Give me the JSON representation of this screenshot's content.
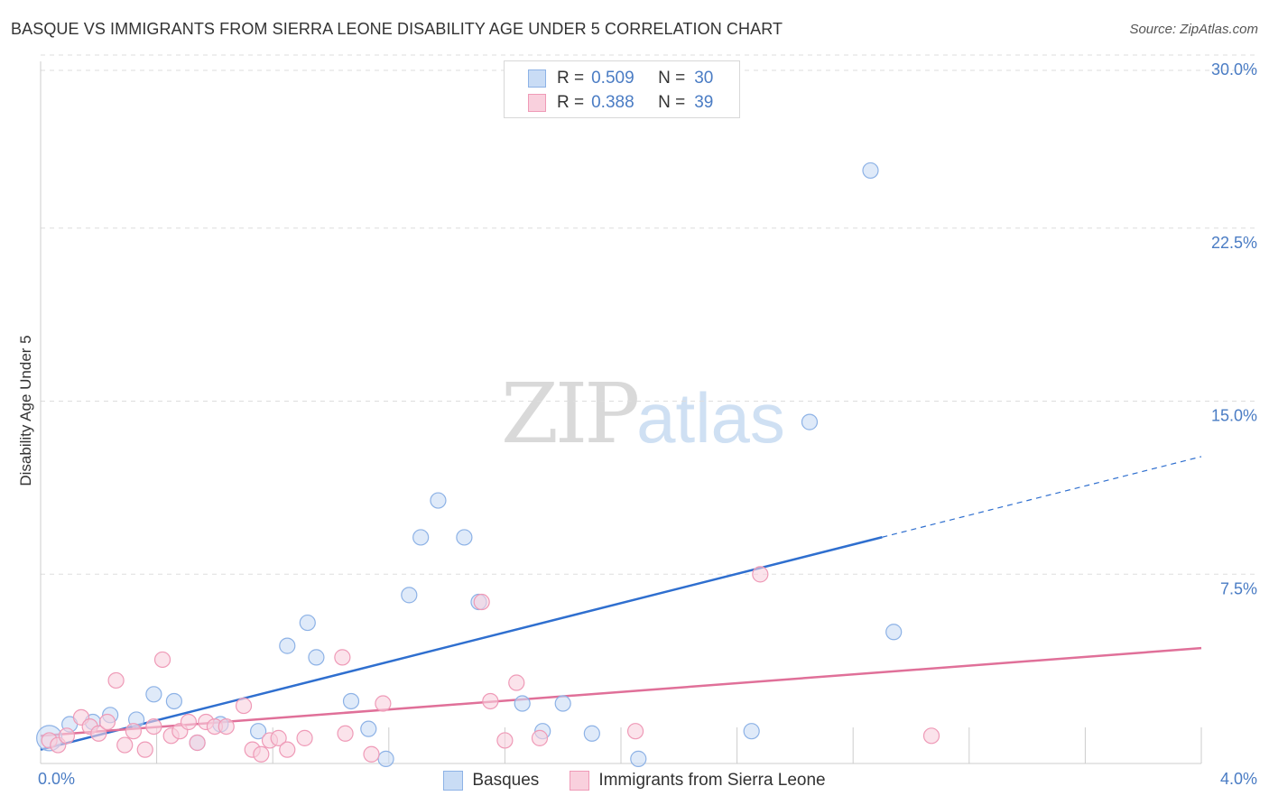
{
  "title": "BASQUE VS IMMIGRANTS FROM SIERRA LEONE DISABILITY AGE UNDER 5 CORRELATION CHART",
  "source": "Source: ZipAtlas.com",
  "watermark": {
    "zip": "ZIP",
    "atlas": "atlas"
  },
  "colors": {
    "blue": "#4a7cc4",
    "blue_line": "#2f6fcf",
    "blue_fill": "#c9dcf5",
    "blue_edge": "#8db2e6",
    "pink_line": "#e07099",
    "pink_fill": "#f9d0dd",
    "pink_edge": "#ef9ab7",
    "grid": "#dddddd"
  },
  "legend": {
    "rows": [
      {
        "r_label": "R =",
        "r_value": "0.509",
        "n_label": "N =",
        "n_value": "30"
      },
      {
        "r_label": "R =",
        "r_value": "0.388",
        "n_label": "N =",
        "n_value": "39"
      }
    ]
  },
  "bottom_legend": [
    "Basques",
    "Immigrants from Sierra Leone"
  ],
  "chart_data": {
    "type": "scatter",
    "title": "BASQUE VS IMMIGRANTS FROM SIERRA LEONE DISABILITY AGE UNDER 5 CORRELATION CHART",
    "xlabel": "",
    "ylabel": "Disability Age Under 5",
    "xlim": [
      0,
      4.0
    ],
    "ylim": [
      0,
      30.0
    ],
    "x_tick_labels": [
      "0.0%",
      "4.0%"
    ],
    "y_ticks": [
      7.5,
      15.0,
      22.5,
      30.0
    ],
    "y_tick_labels": [
      "7.5%",
      "15.0%",
      "22.5%",
      "30.0%"
    ],
    "series": [
      {
        "name": "Basques",
        "points": [
          [
            0.03,
            1.1
          ],
          [
            0.1,
            1.7
          ],
          [
            0.18,
            1.8
          ],
          [
            0.24,
            2.1
          ],
          [
            0.33,
            1.9
          ],
          [
            0.39,
            3.0
          ],
          [
            0.46,
            2.7
          ],
          [
            0.54,
            0.9
          ],
          [
            0.62,
            1.7
          ],
          [
            0.75,
            1.4
          ],
          [
            0.85,
            5.1
          ],
          [
            0.92,
            6.1
          ],
          [
            0.95,
            4.6
          ],
          [
            1.07,
            2.7
          ],
          [
            1.13,
            1.5
          ],
          [
            1.19,
            0.2
          ],
          [
            1.27,
            7.3
          ],
          [
            1.31,
            9.8
          ],
          [
            1.37,
            11.4
          ],
          [
            1.46,
            9.8
          ],
          [
            1.51,
            7.0
          ],
          [
            1.66,
            2.6
          ],
          [
            1.73,
            1.4
          ],
          [
            1.8,
            2.6
          ],
          [
            1.9,
            1.3
          ],
          [
            2.06,
            0.2
          ],
          [
            2.45,
            1.4
          ],
          [
            2.65,
            14.8
          ],
          [
            2.86,
            25.7
          ],
          [
            2.94,
            5.7
          ]
        ],
        "trend": {
          "x0": 0.0,
          "y0": 0.6,
          "x1": 4.0,
          "y1": 13.3,
          "solid_until_x": 2.9
        }
      },
      {
        "name": "Immigrants from Sierra Leone",
        "points": [
          [
            0.03,
            1.0
          ],
          [
            0.06,
            0.8
          ],
          [
            0.09,
            1.2
          ],
          [
            0.14,
            2.0
          ],
          [
            0.17,
            1.6
          ],
          [
            0.2,
            1.3
          ],
          [
            0.23,
            1.8
          ],
          [
            0.26,
            3.6
          ],
          [
            0.29,
            0.8
          ],
          [
            0.32,
            1.4
          ],
          [
            0.36,
            0.6
          ],
          [
            0.39,
            1.6
          ],
          [
            0.42,
            4.5
          ],
          [
            0.45,
            1.2
          ],
          [
            0.48,
            1.4
          ],
          [
            0.51,
            1.8
          ],
          [
            0.54,
            0.9
          ],
          [
            0.57,
            1.8
          ],
          [
            0.6,
            1.6
          ],
          [
            0.64,
            1.6
          ],
          [
            0.7,
            2.5
          ],
          [
            0.73,
            0.6
          ],
          [
            0.76,
            0.4
          ],
          [
            0.79,
            1.0
          ],
          [
            0.82,
            1.1
          ],
          [
            0.85,
            0.6
          ],
          [
            0.91,
            1.1
          ],
          [
            1.04,
            4.6
          ],
          [
            1.05,
            1.3
          ],
          [
            1.14,
            0.4
          ],
          [
            1.18,
            2.6
          ],
          [
            1.52,
            7.0
          ],
          [
            1.55,
            2.7
          ],
          [
            1.6,
            1.0
          ],
          [
            1.64,
            3.5
          ],
          [
            1.72,
            1.1
          ],
          [
            2.05,
            1.4
          ],
          [
            2.48,
            8.2
          ],
          [
            3.07,
            1.2
          ]
        ],
        "trend": {
          "x0": 0.0,
          "y0": 1.2,
          "x1": 4.0,
          "y1": 5.0
        }
      }
    ]
  }
}
